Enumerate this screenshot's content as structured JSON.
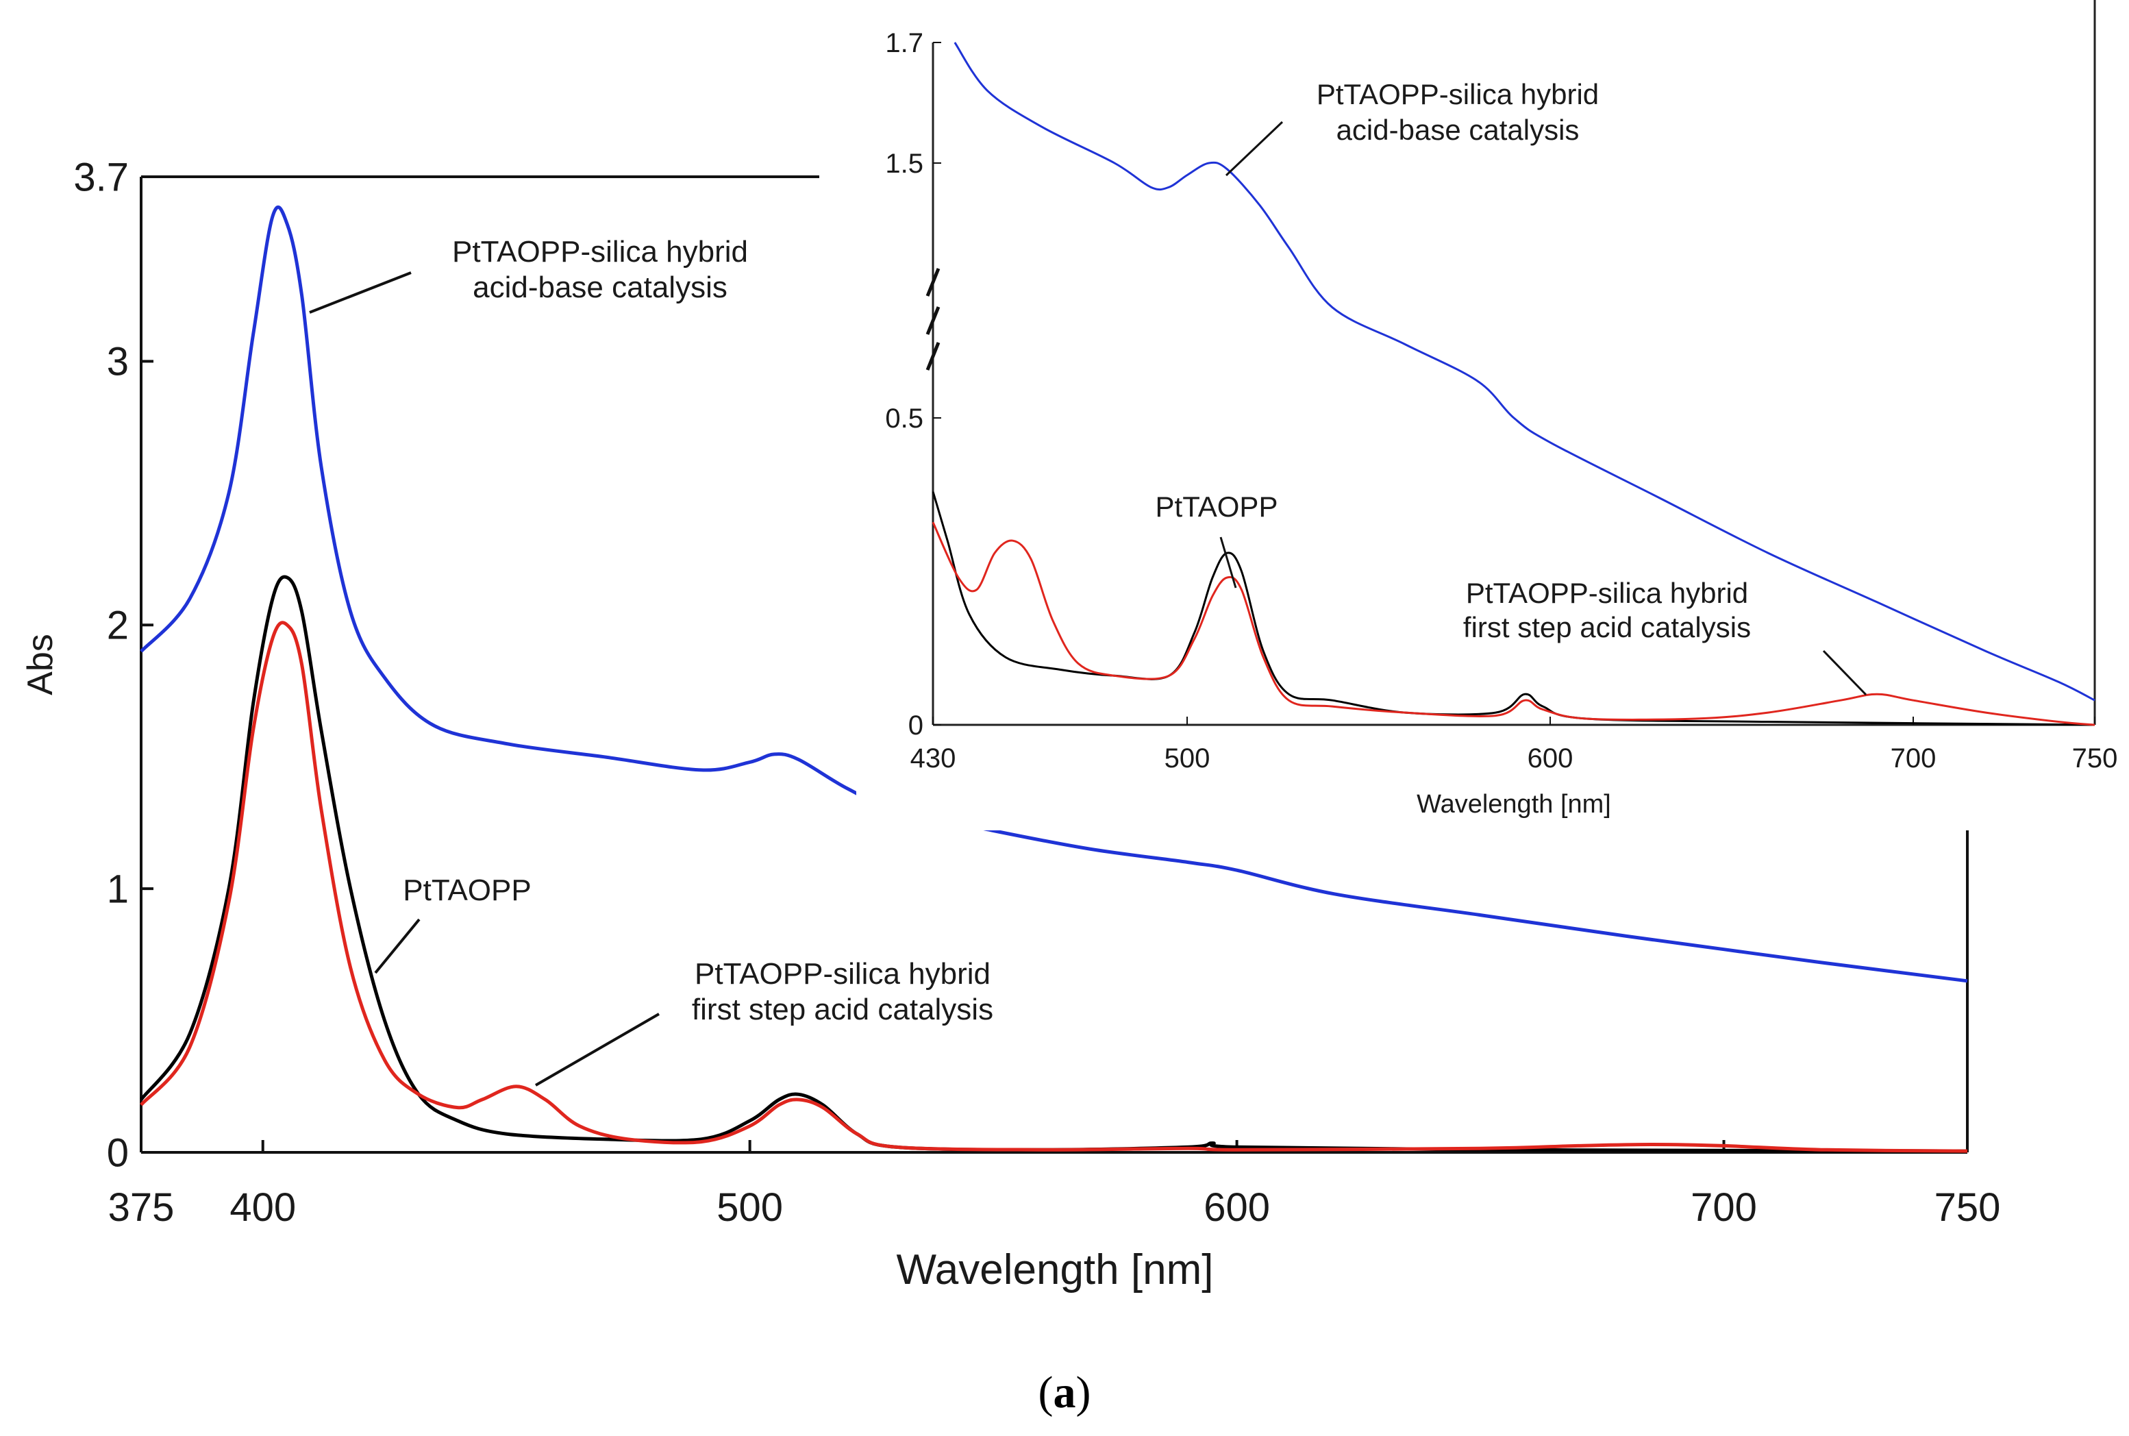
{
  "chart_data": [
    {
      "type": "line",
      "xlabel": "Wavelength [nm]",
      "ylabel": "Abs",
      "xlim": [
        375,
        750
      ],
      "ylim": [
        0,
        3.7
      ],
      "x_ticks": [
        "375",
        "400",
        "500",
        "600",
        "700",
        "750"
      ],
      "y_ticks": [
        "0",
        "1",
        "2",
        "3",
        "3.7"
      ],
      "series": [
        {
          "name": "PtTAOPP-silica hybrid acid-base catalysis",
          "color": "#1f33d6",
          "points": [
            [
              375,
              1.9
            ],
            [
              385,
              2.1
            ],
            [
              393,
              2.5
            ],
            [
              398,
              3.1
            ],
            [
              402,
              3.55
            ],
            [
              405,
              3.52
            ],
            [
              408,
              3.25
            ],
            [
              412,
              2.6
            ],
            [
              418,
              2.05
            ],
            [
              425,
              1.8
            ],
            [
              435,
              1.62
            ],
            [
              450,
              1.55
            ],
            [
              470,
              1.5
            ],
            [
              490,
              1.45
            ],
            [
              500,
              1.48
            ],
            [
              505,
              1.51
            ],
            [
              510,
              1.49
            ],
            [
              520,
              1.38
            ],
            [
              530,
              1.3
            ],
            [
              550,
              1.22
            ],
            [
              570,
              1.15
            ],
            [
              590,
              1.1
            ],
            [
              600,
              1.07
            ],
            [
              620,
              0.98
            ],
            [
              650,
              0.9
            ],
            [
              680,
              0.82
            ],
            [
              700,
              0.77
            ],
            [
              720,
              0.72
            ],
            [
              750,
              0.65
            ]
          ]
        },
        {
          "name": "PtTAOPP",
          "color": "#000000",
          "points": [
            [
              375,
              0.2
            ],
            [
              385,
              0.45
            ],
            [
              393,
              1.0
            ],
            [
              398,
              1.7
            ],
            [
              402,
              2.1
            ],
            [
              405,
              2.18
            ],
            [
              408,
              2.05
            ],
            [
              412,
              1.6
            ],
            [
              418,
              1.0
            ],
            [
              425,
              0.5
            ],
            [
              432,
              0.22
            ],
            [
              440,
              0.12
            ],
            [
              450,
              0.07
            ],
            [
              470,
              0.05
            ],
            [
              490,
              0.05
            ],
            [
              500,
              0.12
            ],
            [
              506,
              0.2
            ],
            [
              510,
              0.22
            ],
            [
              515,
              0.18
            ],
            [
              522,
              0.07
            ],
            [
              530,
              0.02
            ],
            [
              560,
              0.01
            ],
            [
              590,
              0.02
            ],
            [
              595,
              0.035
            ],
            [
              600,
              0.02
            ],
            [
              650,
              0.01
            ],
            [
              750,
              0.005
            ]
          ]
        },
        {
          "name": "PtTAOPP-silica hybrid first step acid catalysis",
          "color": "#e0261e",
          "points": [
            [
              375,
              0.18
            ],
            [
              385,
              0.4
            ],
            [
              393,
              0.95
            ],
            [
              398,
              1.6
            ],
            [
              402,
              1.95
            ],
            [
              405,
              2.0
            ],
            [
              408,
              1.85
            ],
            [
              412,
              1.3
            ],
            [
              418,
              0.7
            ],
            [
              425,
              0.35
            ],
            [
              432,
              0.22
            ],
            [
              440,
              0.17
            ],
            [
              445,
              0.2
            ],
            [
              452,
              0.25
            ],
            [
              458,
              0.2
            ],
            [
              465,
              0.1
            ],
            [
              475,
              0.05
            ],
            [
              490,
              0.04
            ],
            [
              500,
              0.1
            ],
            [
              506,
              0.18
            ],
            [
              510,
              0.2
            ],
            [
              515,
              0.17
            ],
            [
              522,
              0.07
            ],
            [
              530,
              0.02
            ],
            [
              560,
              0.01
            ],
            [
              590,
              0.015
            ],
            [
              600,
              0.01
            ],
            [
              650,
              0.015
            ],
            [
              670,
              0.025
            ],
            [
              685,
              0.03
            ],
            [
              700,
              0.025
            ],
            [
              720,
              0.01
            ],
            [
              750,
              0.005
            ]
          ]
        }
      ],
      "annotations": [
        {
          "lines": [
            "PtTAOPP-silica hybrid",
            "acid-base catalysis"
          ]
        },
        {
          "lines": [
            "PtTAOPP"
          ]
        },
        {
          "lines": [
            "PtTAOPP-silica hybrid",
            "first step acid catalysis"
          ]
        }
      ]
    },
    {
      "type": "line",
      "title": "inset",
      "xlabel": "Wavelength [nm]",
      "xlim": [
        430,
        750
      ],
      "ylim": [
        0,
        1.7
      ],
      "y_axis_break": "0.75-1.3",
      "x_ticks": [
        "430",
        "500",
        "600",
        "700",
        "750"
      ],
      "y_ticks": [
        "0",
        "0.5",
        "1.5",
        "1.7"
      ],
      "series": [
        {
          "name": "PtTAOPP-silica hybrid acid-base catalysis",
          "color": "#1f33d6",
          "points": [
            [
              436,
              1.7
            ],
            [
              445,
              1.62
            ],
            [
              460,
              1.56
            ],
            [
              480,
              1.5
            ],
            [
              490,
              1.46
            ],
            [
              495,
              1.46
            ],
            [
              500,
              1.48
            ],
            [
              506,
              1.5
            ],
            [
              511,
              1.49
            ],
            [
              520,
              1.43
            ],
            [
              528,
              1.36
            ],
            [
              540,
              0.68
            ],
            [
              560,
              0.62
            ],
            [
              580,
              0.56
            ],
            [
              590,
              0.5
            ],
            [
              600,
              0.46
            ],
            [
              630,
              0.37
            ],
            [
              660,
              0.28
            ],
            [
              690,
              0.2
            ],
            [
              720,
              0.12
            ],
            [
              740,
              0.07
            ],
            [
              750,
              0.04
            ]
          ]
        },
        {
          "name": "PtTAOPP",
          "color": "#000000",
          "points": [
            [
              430,
              0.38
            ],
            [
              434,
              0.3
            ],
            [
              440,
              0.18
            ],
            [
              450,
              0.11
            ],
            [
              465,
              0.09
            ],
            [
              480,
              0.08
            ],
            [
              495,
              0.08
            ],
            [
              502,
              0.15
            ],
            [
              507,
              0.24
            ],
            [
              511,
              0.28
            ],
            [
              515,
              0.25
            ],
            [
              521,
              0.12
            ],
            [
              528,
              0.05
            ],
            [
              540,
              0.04
            ],
            [
              560,
              0.02
            ],
            [
              585,
              0.02
            ],
            [
              593,
              0.05
            ],
            [
              598,
              0.03
            ],
            [
              610,
              0.01
            ],
            [
              660,
              0.005
            ],
            [
              750,
              0.0
            ]
          ]
        },
        {
          "name": "PtTAOPP-silica hybrid first step acid catalysis",
          "color": "#e0261e",
          "points": [
            [
              430,
              0.33
            ],
            [
              437,
              0.24
            ],
            [
              442,
              0.22
            ],
            [
              447,
              0.28
            ],
            [
              452,
              0.3
            ],
            [
              457,
              0.27
            ],
            [
              463,
              0.17
            ],
            [
              470,
              0.1
            ],
            [
              480,
              0.08
            ],
            [
              495,
              0.08
            ],
            [
              502,
              0.14
            ],
            [
              507,
              0.21
            ],
            [
              511,
              0.24
            ],
            [
              515,
              0.22
            ],
            [
              521,
              0.11
            ],
            [
              528,
              0.04
            ],
            [
              540,
              0.03
            ],
            [
              560,
              0.02
            ],
            [
              585,
              0.015
            ],
            [
              593,
              0.04
            ],
            [
              598,
              0.025
            ],
            [
              610,
              0.01
            ],
            [
              640,
              0.01
            ],
            [
              660,
              0.02
            ],
            [
              680,
              0.04
            ],
            [
              690,
              0.05
            ],
            [
              700,
              0.04
            ],
            [
              720,
              0.02
            ],
            [
              740,
              0.005
            ],
            [
              750,
              0.0
            ]
          ]
        }
      ],
      "annotations": [
        {
          "lines": [
            "PtTAOPP-silica hybrid",
            "acid-base catalysis"
          ]
        },
        {
          "lines": [
            "PtTAOPP"
          ]
        },
        {
          "lines": [
            "PtTAOPP-silica hybrid",
            "first step acid catalysis"
          ]
        }
      ]
    }
  ],
  "caption": {
    "open": "(",
    "letter": "a",
    "close": ")"
  }
}
